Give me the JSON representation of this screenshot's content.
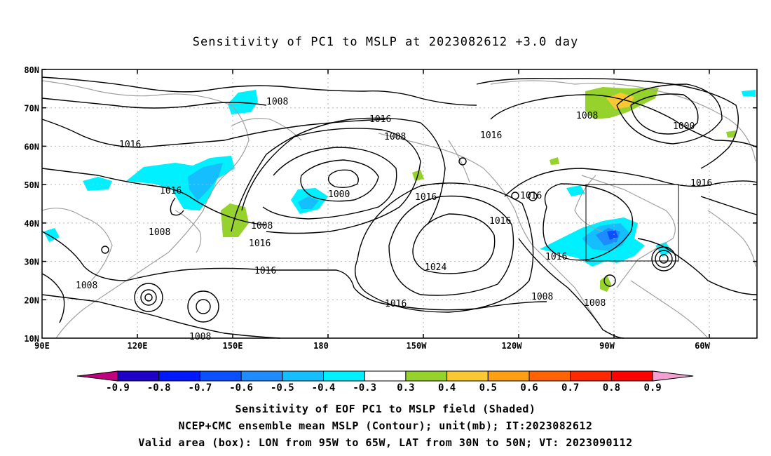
{
  "title": "Sensitivity of PC1 to MSLP at 2023082612 +3.0 day",
  "lat_labels": [
    "80N",
    "70N",
    "60N",
    "50N",
    "40N",
    "30N",
    "20N",
    "10N"
  ],
  "lon_labels": [
    "90E",
    "120E",
    "150E",
    "180",
    "150W",
    "120W",
    "90W",
    "60W"
  ],
  "contour_labels": [
    "1008",
    "1016",
    "1008",
    "1016",
    "1016",
    "1000",
    "1016",
    "1008",
    "1000",
    "1016",
    "1016",
    "1008",
    "1016",
    "1016",
    "1016",
    "1024",
    "1016",
    "1008",
    "1008",
    "1016",
    "1008",
    "1008",
    "1016",
    "1016",
    "1008"
  ],
  "colorbar": {
    "labels": [
      "-0.9",
      "-0.8",
      "-0.7",
      "-0.6",
      "-0.5",
      "-0.4",
      "-0.3",
      "0.3",
      "0.4",
      "0.5",
      "0.6",
      "0.7",
      "0.8",
      "0.9"
    ],
    "colors": [
      "#c0007e",
      "#1e00c8",
      "#0018ff",
      "#0a50ff",
      "#1e8cff",
      "#14beff",
      "#00f0ff",
      "#ffffff",
      "#96d22c",
      "#fac832",
      "#ffa014",
      "#ff6400",
      "#ff2800",
      "#ff0000",
      "#f5a0d2"
    ]
  },
  "captions": [
    "Sensitivity of EOF PC1 to MSLP field (Shaded)",
    "NCEP+CMC ensemble mean MSLP (Contour); unit(mb); IT:2023082612",
    "Valid area (box): LON from 95W to 65W, LAT from 30N to 50N; VT: 2023090112"
  ]
}
